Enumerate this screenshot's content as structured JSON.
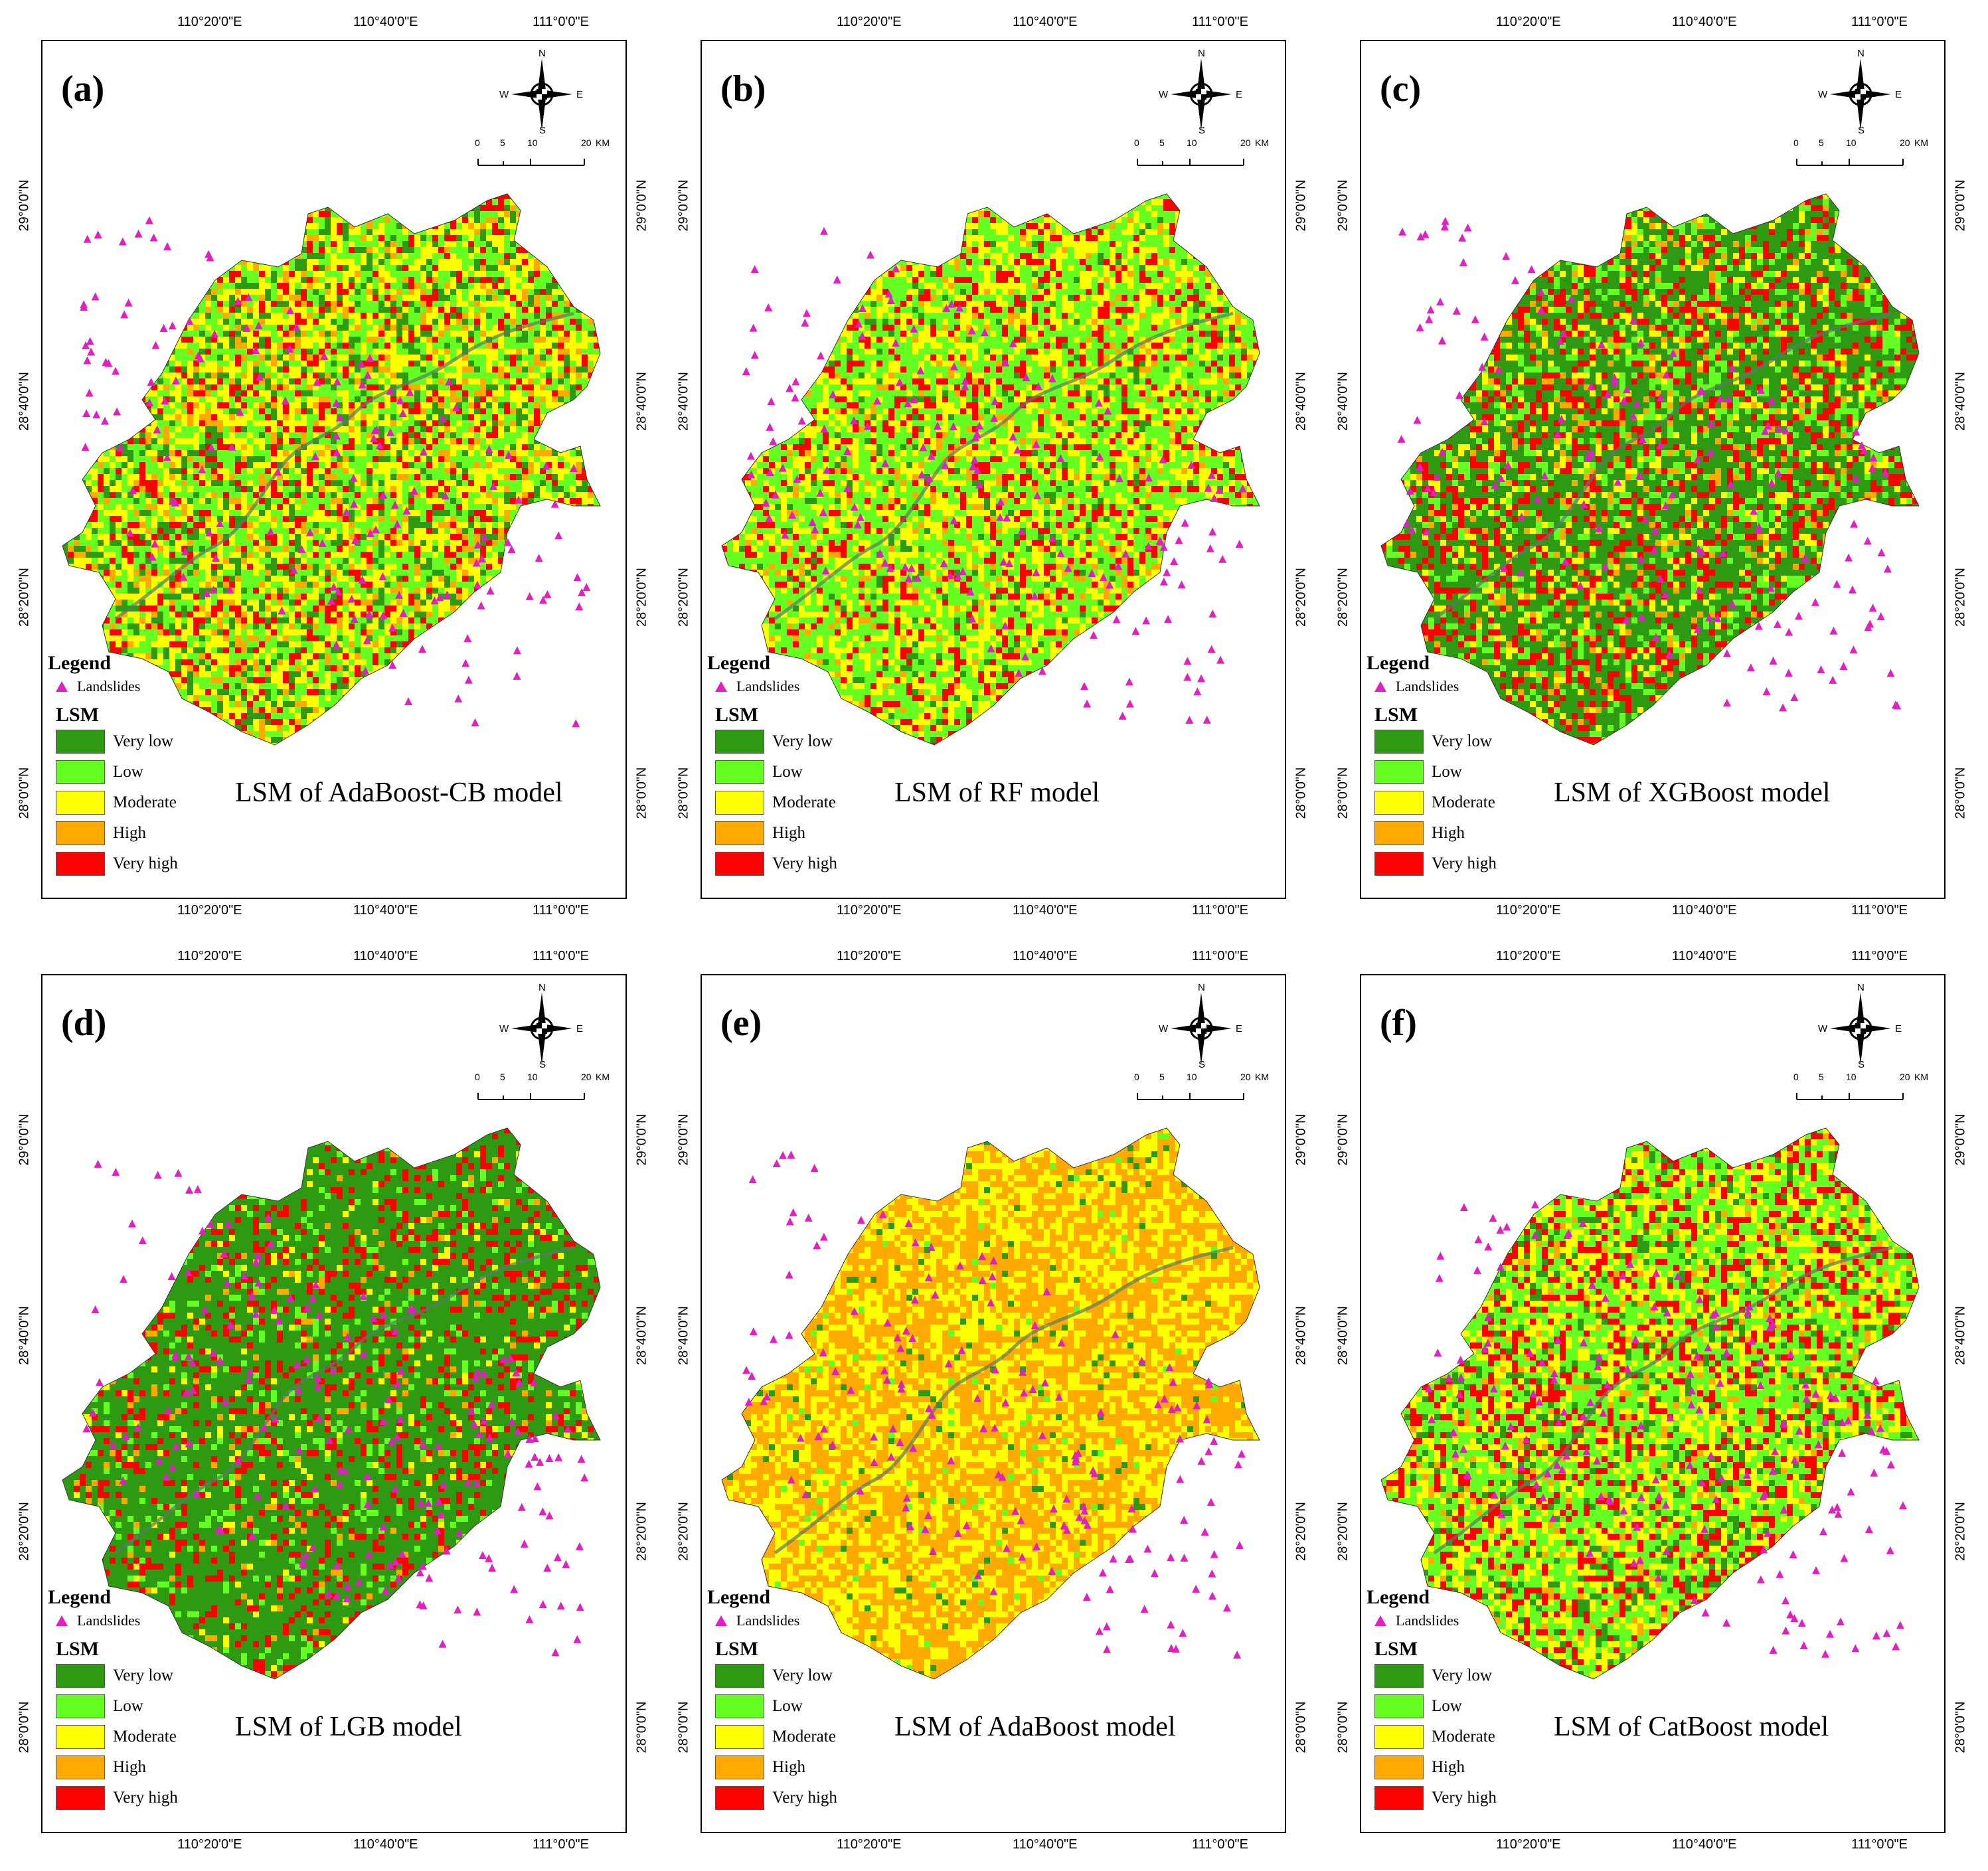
{
  "coords": {
    "top_ticks": [
      "110°20'0\"E",
      "110°40'0\"E",
      "111°0'0\"E"
    ],
    "bottom_ticks": [
      "110°20'0\"E",
      "110°40'0\"E",
      "111°0'0\"E"
    ],
    "side_ticks": [
      "29°0'0\"N",
      "28°40'0\"N",
      "28°20'0\"N",
      "28°0'0\"N"
    ]
  },
  "compass": {
    "n": "N",
    "s": "S",
    "e": "E",
    "w": "W"
  },
  "scale": {
    "ticks": [
      "0",
      "5",
      "10",
      "20"
    ],
    "unit": "KM"
  },
  "legend": {
    "title": "Legend",
    "landslides": "Landslides",
    "lsm_label": "LSM",
    "classes": [
      "Very low",
      "Low",
      "Moderate",
      "High",
      "Very high"
    ],
    "colors": [
      "#2e9a12",
      "#66ff22",
      "#ffff00",
      "#ffaa00",
      "#ff0000"
    ],
    "landslide_color": "#e020c0"
  },
  "panels": [
    {
      "label": "(a)",
      "title": "LSM  of AdaBoost-CB model",
      "dist": [
        0.15,
        0.3,
        0.3,
        0.1,
        0.15
      ]
    },
    {
      "label": "(b)",
      "title": "LSM of RF model",
      "dist": [
        0.05,
        0.45,
        0.3,
        0.05,
        0.15
      ]
    },
    {
      "label": "(c)",
      "title": "LSM of XGBoost model",
      "dist": [
        0.5,
        0.15,
        0.1,
        0.05,
        0.2
      ]
    },
    {
      "label": "(d)",
      "title": "LSM of LGB model",
      "dist": [
        0.7,
        0.08,
        0.04,
        0.03,
        0.15
      ]
    },
    {
      "label": "(e)",
      "title": "LSM of AdaBoost model",
      "dist": [
        0.03,
        0.02,
        0.4,
        0.55,
        0.0
      ]
    },
    {
      "label": "(f)",
      "title": "LSM of CatBoost model",
      "dist": [
        0.1,
        0.4,
        0.25,
        0.05,
        0.2
      ]
    }
  ]
}
